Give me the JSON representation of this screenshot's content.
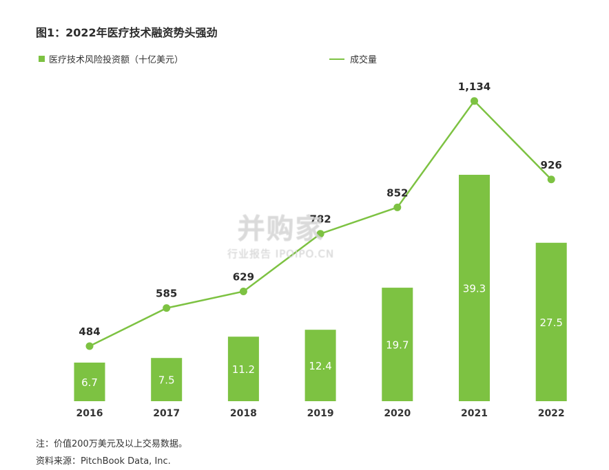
{
  "title": "图1：2022年医疗技术融资势头强劲",
  "chart_data": {
    "type": "bar",
    "categories": [
      "2016",
      "2017",
      "2018",
      "2019",
      "2020",
      "2021",
      "2022"
    ],
    "series": [
      {
        "name": "医疗技术风险投资额（十亿美元）",
        "type": "bar",
        "values": [
          6.7,
          7.5,
          11.2,
          12.4,
          19.7,
          39.3,
          27.5
        ],
        "color": "#7dc242"
      },
      {
        "name": "成交量",
        "type": "line",
        "values": [
          484,
          585,
          629,
          782,
          852,
          1134,
          926
        ],
        "color": "#7dc242",
        "labels": [
          "484",
          "585",
          "629",
          "782",
          "852",
          "1,134",
          "926"
        ]
      }
    ],
    "grid": false,
    "legend": "top"
  },
  "notes": {
    "note": "注：价值200万美元及以上交易数据。",
    "source": "资料来源：PitchBook Data, Inc."
  },
  "watermark": {
    "main": "并购家",
    "sub": "行业报告 IPOIPO.CN"
  }
}
